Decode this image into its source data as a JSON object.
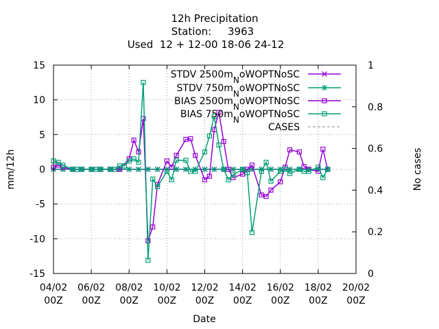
{
  "chart_data": {
    "type": "line",
    "title_lines": [
      "12h Precipitation",
      "Station:     3963",
      "Used  12 + 12-00 18-06 24-12"
    ],
    "xlabel": "Date",
    "ylabel": "mm/12h",
    "y2label": "No cases",
    "xlim": [
      0,
      16
    ],
    "ylim": [
      -15,
      15
    ],
    "y2lim": [
      0,
      1
    ],
    "grid": true,
    "legend_position": "top-right",
    "x_ticks": [
      {
        "v": 0,
        "l1": "04/02",
        "l2": "00Z"
      },
      {
        "v": 2,
        "l1": "06/02",
        "l2": "00Z"
      },
      {
        "v": 4,
        "l1": "08/02",
        "l2": "00Z"
      },
      {
        "v": 6,
        "l1": "10/02",
        "l2": "00Z"
      },
      {
        "v": 8,
        "l1": "12/02",
        "l2": "00Z"
      },
      {
        "v": 10,
        "l1": "14/02",
        "l2": "00Z"
      },
      {
        "v": 12,
        "l1": "16/02",
        "l2": "00Z"
      },
      {
        "v": 14,
        "l1": "18/02",
        "l2": "00Z"
      },
      {
        "v": 16,
        "l1": "20/02",
        "l2": "00Z"
      }
    ],
    "y_ticks": [
      {
        "v": 15,
        "l": "15"
      },
      {
        "v": 10,
        "l": "10"
      },
      {
        "v": 5,
        "l": "5"
      },
      {
        "v": 0,
        "l": "0"
      },
      {
        "v": -5,
        "l": "-5"
      },
      {
        "v": -10,
        "l": "-10"
      },
      {
        "v": -15,
        "l": "-15"
      }
    ],
    "y2_ticks": [
      {
        "v": 1,
        "l": "1"
      },
      {
        "v": 0.8,
        "l": "0.8"
      },
      {
        "v": 0.6,
        "l": "0.6"
      },
      {
        "v": 0.4,
        "l": "0.4"
      },
      {
        "v": 0.2,
        "l": "0.2"
      },
      {
        "v": 0,
        "l": "0"
      }
    ],
    "series": [
      {
        "name": "STDV 2500m_NoWOPTNoSC",
        "legend_main": "STDV 2500m",
        "legend_sub": "N",
        "legend_tail": "oWOPTNoSC",
        "color": "#9400d3",
        "marker": "x",
        "x": [
          0,
          0.5,
          1,
          1.5,
          2,
          2.5,
          3,
          3.5,
          4,
          4.5,
          5,
          5.5,
          6,
          6.5,
          7,
          7.5,
          8,
          8.5,
          9,
          9.5,
          10,
          10.5,
          11,
          11.5,
          12,
          12.5,
          13,
          13.5,
          14,
          14.5
        ],
        "y": [
          0,
          0,
          0,
          0,
          0,
          0,
          0,
          0,
          0,
          0,
          0,
          0,
          0,
          0,
          0,
          0,
          0,
          0,
          0,
          0,
          0,
          0,
          0,
          0,
          0,
          0,
          0,
          0,
          0,
          0
        ]
      },
      {
        "name": "STDV 750m_NoWOPTNoSC",
        "legend_main": "STDV 750m",
        "legend_sub": "N",
        "legend_tail": "oWOPTNoSC",
        "color": "#009e73",
        "marker": "star",
        "x": [
          0,
          0.5,
          1,
          1.5,
          2,
          2.5,
          3,
          3.5,
          4,
          4.5,
          5,
          5.5,
          6,
          6.5,
          7,
          7.5,
          8,
          8.5,
          9,
          9.5,
          10,
          10.5,
          11,
          11.5,
          12,
          12.5,
          13,
          13.5,
          14,
          14.5
        ],
        "y": [
          0,
          0,
          0,
          0,
          0,
          0,
          0,
          0,
          0,
          0,
          0,
          0,
          0,
          0,
          0,
          0,
          0,
          0,
          0,
          0,
          0,
          0,
          0,
          0,
          0,
          0,
          0,
          0,
          0,
          0
        ]
      },
      {
        "name": "BIAS 2500m_NoWOPTNoSC",
        "legend_main": "BIAS 2500m",
        "legend_sub": "N",
        "legend_tail": "oWOPTNoSC",
        "color": "#9400d3",
        "marker": "square",
        "x": [
          0,
          0.25,
          0.5,
          1,
          1.25,
          1.5,
          2,
          2.25,
          2.5,
          3,
          3.25,
          3.5,
          4,
          4.25,
          4.5,
          4.75,
          5,
          5.25,
          5.5,
          6,
          6.25,
          6.5,
          7,
          7.25,
          7.5,
          8,
          8.25,
          8.5,
          8.75,
          9,
          9.25,
          9.5,
          10,
          10.25,
          10.5,
          11,
          11.25,
          11.5,
          12,
          12.25,
          12.5,
          13,
          13.25,
          13.5,
          14,
          14.25,
          14.5
        ],
        "y": [
          0.3,
          0.6,
          0.3,
          0,
          0,
          0,
          0,
          0,
          0,
          0,
          0,
          0,
          1.5,
          4.2,
          2.5,
          7.3,
          -10.3,
          -8.3,
          -2.2,
          1.2,
          0.3,
          2.0,
          4.3,
          4.4,
          2.0,
          -1.5,
          -1.0,
          5.7,
          8.2,
          4.0,
          0,
          -1.2,
          -0.7,
          0,
          0.6,
          -3.7,
          -3.9,
          -3.0,
          -1.8,
          0.3,
          2.8,
          2.5,
          0.4,
          0,
          -0.3,
          2.9,
          0
        ]
      },
      {
        "name": "BIAS 750m_NoWOPTNoSC",
        "legend_main": "BIAS 750m",
        "legend_sub": "N",
        "legend_tail": "oWOPTNoSC",
        "color": "#009e73",
        "marker": "square",
        "x": [
          0,
          0.25,
          0.5,
          1,
          1.25,
          1.5,
          2,
          2.25,
          2.5,
          3,
          3.25,
          3.5,
          3.75,
          4,
          4.25,
          4.5,
          4.75,
          5,
          5.25,
          5.5,
          6,
          6.25,
          6.5,
          7,
          7.25,
          7.5,
          8,
          8.25,
          8.5,
          8.75,
          9,
          9.25,
          9.5,
          10,
          10.25,
          10.5,
          11,
          11.25,
          11.5,
          12,
          12.25,
          12.5,
          13,
          13.25,
          13.5,
          14,
          14.25,
          14.5
        ],
        "y": [
          1.2,
          1.0,
          0.6,
          0,
          0,
          0,
          0,
          0,
          0,
          0,
          0,
          0.5,
          0.5,
          1.2,
          1.5,
          1.0,
          12.5,
          -13.1,
          -1.4,
          -2.5,
          -0.3,
          -1.5,
          1.3,
          1.3,
          -0.3,
          -0.3,
          2.5,
          4.8,
          7.6,
          3.5,
          0,
          -1.5,
          -0.8,
          0,
          -0.5,
          -9.1,
          -0.3,
          1.0,
          -1.7,
          -0.3,
          0,
          -0.6,
          0,
          -0.3,
          -0.3,
          0.3,
          -1.2,
          0
        ]
      },
      {
        "name": "CASES",
        "legend_main": "CASES",
        "legend_sub": "",
        "legend_tail": "",
        "color": "#a0a0a0",
        "marker": "none",
        "axis": "y2",
        "x": [],
        "y": []
      }
    ]
  }
}
